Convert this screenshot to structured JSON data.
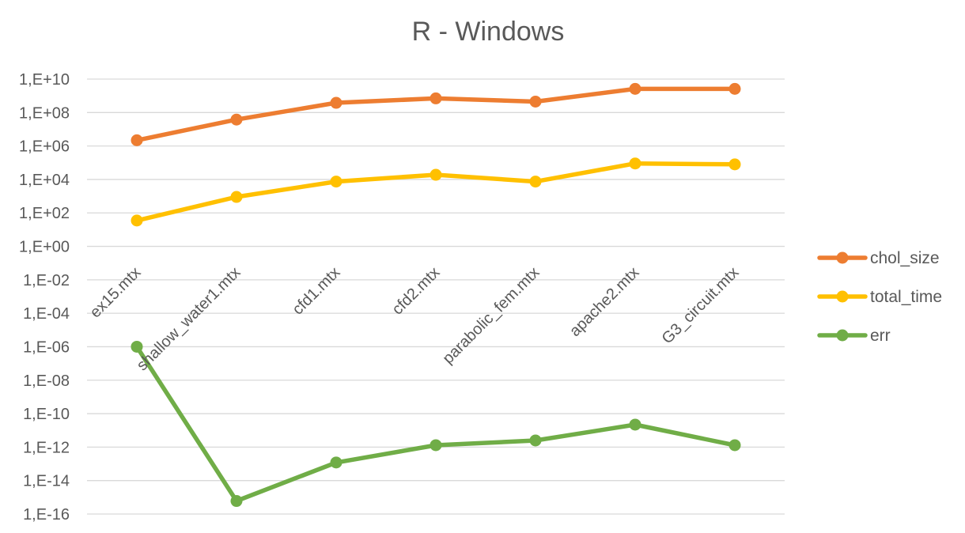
{
  "chart_data": {
    "type": "line",
    "title": "R - Windows",
    "xlabel": "",
    "ylabel": "",
    "y_scale": "log10",
    "ylim": [
      1e-16,
      10000000000.0
    ],
    "y_tick_labels": [
      "1,E+10",
      "1,E+08",
      "1,E+06",
      "1,E+04",
      "1,E+02",
      "1,E+00",
      "1,E-02",
      "1,E-04",
      "1,E-06",
      "1,E-08",
      "1,E-10",
      "1,E-12",
      "1,E-14",
      "1,E-16"
    ],
    "categories": [
      "ex15.mtx",
      "shallow_water1.mtx",
      "cfd1.mtx",
      "cfd2.mtx",
      "parabolic_fem.mtx",
      "apache2.mtx",
      "G3_circuit.mtx"
    ],
    "grid": true,
    "legend_position": "right",
    "series": [
      {
        "name": "chol_size",
        "color": "#ED7D31",
        "values": [
          2200000.0,
          38000000.0,
          380000000.0,
          700000000.0,
          450000000.0,
          2600000000.0,
          2600000000.0
        ]
      },
      {
        "name": "total_time",
        "color": "#FFC000",
        "values": [
          35,
          900,
          7500,
          19000,
          7500,
          90000,
          80000
        ]
      },
      {
        "name": "err",
        "color": "#70AD47",
        "values": [
          1e-06,
          6e-16,
          1.2e-13,
          1.3e-12,
          2.5e-12,
          2.2e-11,
          1.3e-12
        ]
      }
    ]
  }
}
